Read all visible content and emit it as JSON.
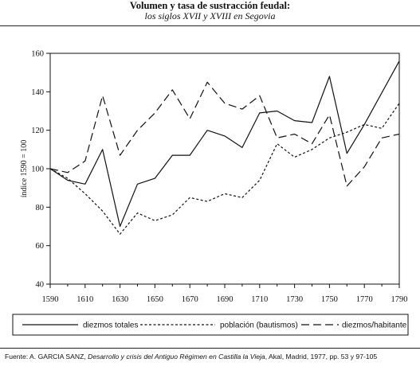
{
  "title": "Volumen y tasa de sustracción feudal:",
  "subtitle": "los siglos XVII y XVIII en Segovia",
  "source": {
    "prefix": "Fuente: A. GARCIA SANZ, ",
    "work": "Desarrollo y crisis del Antiguo Régimen en Castilla la Vieja",
    "suffix": ", Akal, Madrid, 1977, pp. 53 y 97-105"
  },
  "chart_data": {
    "type": "line",
    "ylabel": "índice 1590 = 100",
    "xlim": [
      1590,
      1790
    ],
    "ylim": [
      40,
      160
    ],
    "x_ticks": [
      1590,
      1610,
      1630,
      1650,
      1670,
      1690,
      1710,
      1730,
      1750,
      1770,
      1790
    ],
    "y_ticks": [
      40,
      60,
      80,
      100,
      120,
      140,
      160
    ],
    "grid": false,
    "legend_position": "bottom",
    "series": [
      {
        "name": "diezmos totales",
        "dash": "solid",
        "points": [
          [
            1590,
            100
          ],
          [
            1595,
            97
          ],
          [
            1600,
            94
          ],
          [
            1605,
            93
          ],
          [
            1610,
            92
          ],
          [
            1620,
            110
          ],
          [
            1630,
            70
          ],
          [
            1640,
            92
          ],
          [
            1650,
            95
          ],
          [
            1660,
            107
          ],
          [
            1670,
            107
          ],
          [
            1680,
            120
          ],
          [
            1690,
            117
          ],
          [
            1700,
            111
          ],
          [
            1710,
            129
          ],
          [
            1720,
            130
          ],
          [
            1730,
            125
          ],
          [
            1740,
            124
          ],
          [
            1750,
            148
          ],
          [
            1760,
            108
          ],
          [
            1770,
            123
          ],
          [
            1790,
            156
          ]
        ]
      },
      {
        "name": "población (bautismos)",
        "dash": "dotted",
        "points": [
          [
            1590,
            100
          ],
          [
            1600,
            95
          ],
          [
            1610,
            87
          ],
          [
            1620,
            78
          ],
          [
            1630,
            66
          ],
          [
            1640,
            77
          ],
          [
            1650,
            73
          ],
          [
            1660,
            76
          ],
          [
            1670,
            85
          ],
          [
            1680,
            83
          ],
          [
            1690,
            87
          ],
          [
            1700,
            85
          ],
          [
            1710,
            94
          ],
          [
            1720,
            113
          ],
          [
            1730,
            106
          ],
          [
            1740,
            110
          ],
          [
            1750,
            116
          ],
          [
            1760,
            119
          ],
          [
            1770,
            123
          ],
          [
            1780,
            121
          ],
          [
            1790,
            134
          ]
        ]
      },
      {
        "name": "diezmos/habitante",
        "dash": "dashed",
        "points": [
          [
            1590,
            100
          ],
          [
            1600,
            98
          ],
          [
            1610,
            104
          ],
          [
            1620,
            138
          ],
          [
            1630,
            107
          ],
          [
            1640,
            120
          ],
          [
            1650,
            129
          ],
          [
            1660,
            141
          ],
          [
            1670,
            126
          ],
          [
            1680,
            145
          ],
          [
            1690,
            134
          ],
          [
            1700,
            131
          ],
          [
            1710,
            138
          ],
          [
            1720,
            116
          ],
          [
            1730,
            118
          ],
          [
            1740,
            113
          ],
          [
            1750,
            128
          ],
          [
            1760,
            91
          ],
          [
            1770,
            101
          ],
          [
            1780,
            116
          ],
          [
            1790,
            118
          ]
        ]
      }
    ]
  }
}
